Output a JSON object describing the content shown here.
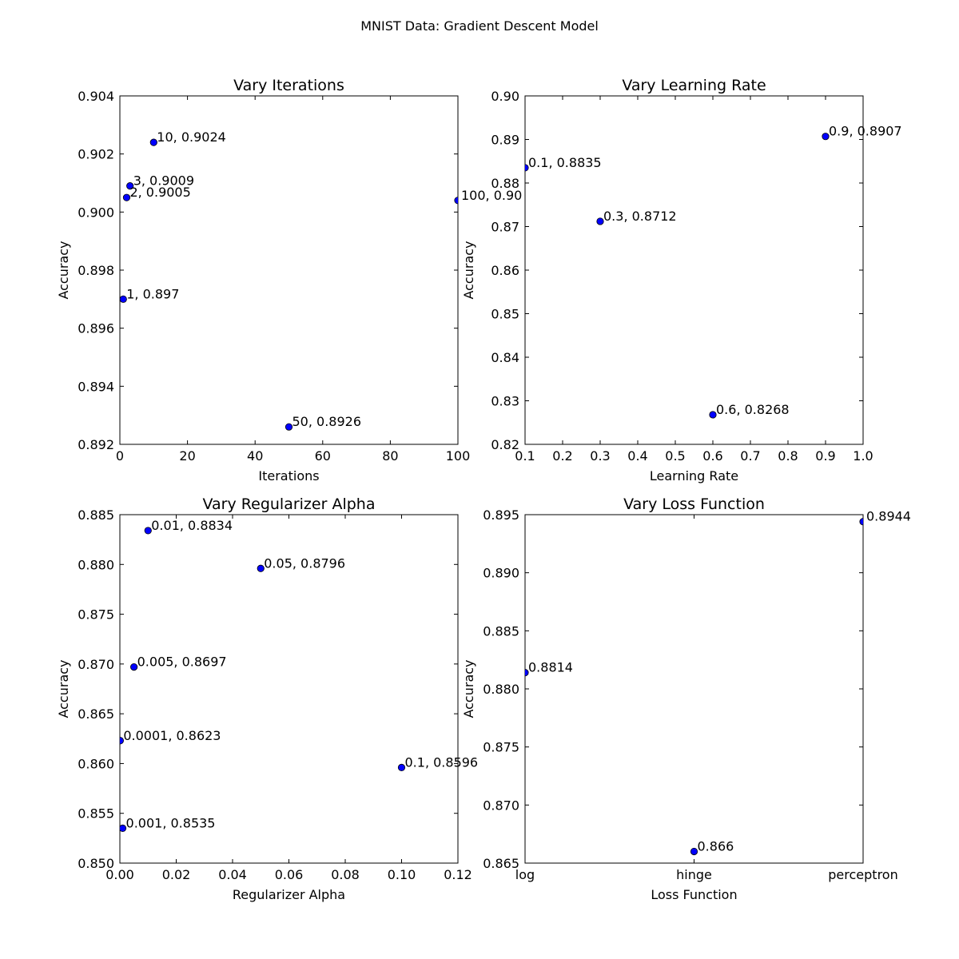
{
  "figure": {
    "title": "MNIST Data: Gradient Descent Model",
    "marker_color": "#0000ff"
  },
  "chart_data": [
    {
      "type": "scatter",
      "title": "Vary Iterations",
      "xlabel": "Iterations",
      "ylabel": "Accuracy",
      "xlim": [
        0,
        100
      ],
      "ylim": [
        0.892,
        0.904
      ],
      "xticks": [
        0,
        20,
        40,
        60,
        80,
        100
      ],
      "xtick_labels": [
        "0",
        "20",
        "40",
        "60",
        "80",
        "100"
      ],
      "yticks": [
        0.892,
        0.894,
        0.896,
        0.898,
        0.9,
        0.902,
        0.904
      ],
      "ytick_labels": [
        "0.892",
        "0.894",
        "0.896",
        "0.898",
        "0.900",
        "0.902",
        "0.904"
      ],
      "points": [
        {
          "x": 1,
          "y": 0.897,
          "label": "1, 0.897"
        },
        {
          "x": 2,
          "y": 0.9005,
          "label": "2, 0.9005"
        },
        {
          "x": 3,
          "y": 0.9009,
          "label": "3, 0.9009"
        },
        {
          "x": 10,
          "y": 0.9024,
          "label": "10, 0.9024"
        },
        {
          "x": 50,
          "y": 0.8926,
          "label": "50, 0.8926"
        },
        {
          "x": 100,
          "y": 0.9004,
          "label": "100, 0.90"
        }
      ]
    },
    {
      "type": "scatter",
      "title": "Vary Learning Rate",
      "xlabel": "Learning Rate",
      "ylabel": "Accuracy",
      "xlim": [
        0.1,
        1.0
      ],
      "ylim": [
        0.82,
        0.9
      ],
      "xticks": [
        0.1,
        0.2,
        0.3,
        0.4,
        0.5,
        0.6,
        0.7,
        0.8,
        0.9,
        1.0
      ],
      "xtick_labels": [
        "0.1",
        "0.2",
        "0.3",
        "0.4",
        "0.5",
        "0.6",
        "0.7",
        "0.8",
        "0.9",
        "1.0"
      ],
      "yticks": [
        0.82,
        0.83,
        0.84,
        0.85,
        0.86,
        0.87,
        0.88,
        0.89,
        0.9
      ],
      "ytick_labels": [
        "0.82",
        "0.83",
        "0.84",
        "0.85",
        "0.86",
        "0.87",
        "0.88",
        "0.89",
        "0.90"
      ],
      "points": [
        {
          "x": 0.1,
          "y": 0.8835,
          "label": "0.1, 0.8835"
        },
        {
          "x": 0.3,
          "y": 0.8712,
          "label": "0.3, 0.8712"
        },
        {
          "x": 0.6,
          "y": 0.8268,
          "label": "0.6, 0.8268"
        },
        {
          "x": 0.9,
          "y": 0.8907,
          "label": "0.9, 0.8907"
        }
      ]
    },
    {
      "type": "scatter",
      "title": "Vary Regularizer Alpha",
      "xlabel": "Regularizer Alpha",
      "ylabel": "Accuracy",
      "xlim": [
        0.0,
        0.12
      ],
      "ylim": [
        0.85,
        0.885
      ],
      "xticks": [
        0.0,
        0.02,
        0.04,
        0.06,
        0.08,
        0.1,
        0.12
      ],
      "xtick_labels": [
        "0.00",
        "0.02",
        "0.04",
        "0.06",
        "0.08",
        "0.10",
        "0.12"
      ],
      "yticks": [
        0.85,
        0.855,
        0.86,
        0.865,
        0.87,
        0.875,
        0.88,
        0.885
      ],
      "ytick_labels": [
        "0.850",
        "0.855",
        "0.860",
        "0.865",
        "0.870",
        "0.875",
        "0.880",
        "0.885"
      ],
      "points": [
        {
          "x": 0.0001,
          "y": 0.8623,
          "label": "0.0001, 0.8623"
        },
        {
          "x": 0.001,
          "y": 0.8535,
          "label": "0.001, 0.8535"
        },
        {
          "x": 0.005,
          "y": 0.8697,
          "label": "0.005, 0.8697"
        },
        {
          "x": 0.01,
          "y": 0.8834,
          "label": "0.01, 0.8834"
        },
        {
          "x": 0.05,
          "y": 0.8796,
          "label": "0.05, 0.8796"
        },
        {
          "x": 0.1,
          "y": 0.8596,
          "label": "0.1, 0.8596"
        }
      ]
    },
    {
      "type": "scatter",
      "title": "Vary Loss Function",
      "xlabel": "Loss Function",
      "ylabel": "Accuracy",
      "categories": [
        "log",
        "hinge",
        "perceptron"
      ],
      "xlim": [
        0,
        2
      ],
      "ylim": [
        0.865,
        0.895
      ],
      "xticks": [
        0,
        1,
        2
      ],
      "xtick_labels": [
        "log",
        "hinge",
        "perceptron"
      ],
      "yticks": [
        0.865,
        0.87,
        0.875,
        0.88,
        0.885,
        0.89,
        0.895
      ],
      "ytick_labels": [
        "0.865",
        "0.870",
        "0.875",
        "0.880",
        "0.885",
        "0.890",
        "0.895"
      ],
      "points": [
        {
          "x": 0,
          "y": 0.8814,
          "label": "0.8814"
        },
        {
          "x": 1,
          "y": 0.866,
          "label": "0.866"
        },
        {
          "x": 2,
          "y": 0.8944,
          "label": "0.8944"
        }
      ]
    }
  ]
}
